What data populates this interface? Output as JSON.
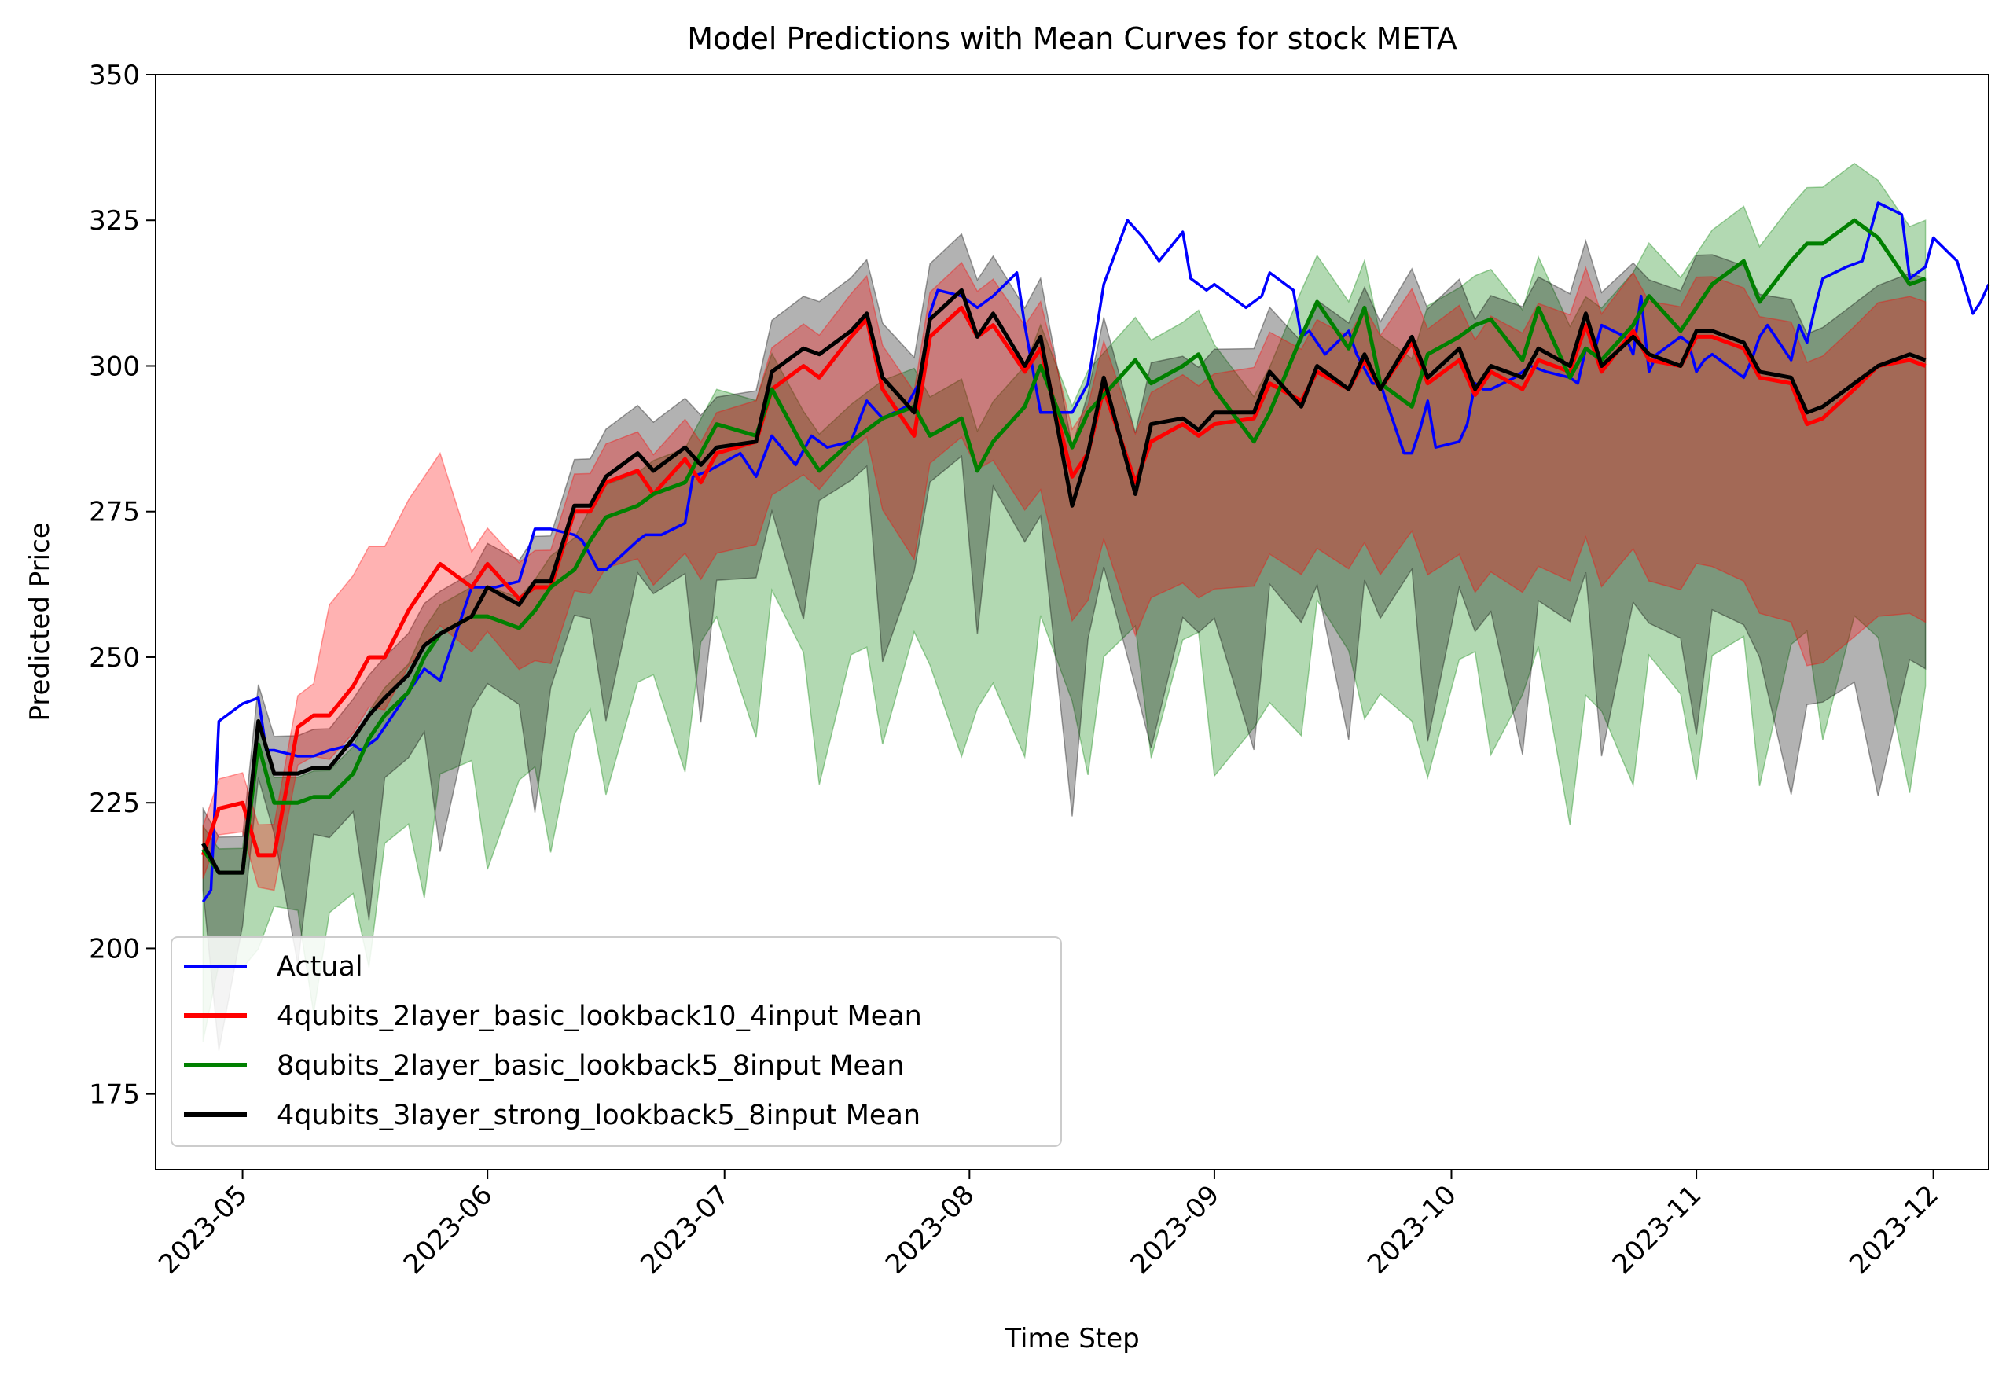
{
  "chart_data": {
    "type": "line",
    "title": "Model Predictions with Mean Curves for stock META",
    "xlabel": "Time Step",
    "ylabel": "Predicted Price",
    "ylim": [
      162,
      350
    ],
    "xlim": [
      "2023-04-20",
      "2023-12-08"
    ],
    "yticks": [
      175,
      200,
      225,
      250,
      275,
      300,
      325,
      350
    ],
    "xticks": [
      "2023-05-01",
      "2023-06-01",
      "2023-07-01",
      "2023-08-01",
      "2023-09-01",
      "2023-10-01",
      "2023-11-01",
      "2023-12-01"
    ],
    "xtick_labels": [
      "2023-05",
      "2023-06",
      "2023-07",
      "2023-08",
      "2023-09",
      "2023-10",
      "2023-11",
      "2023-12"
    ],
    "grid": false,
    "legend_position": "lower-left",
    "series": [
      {
        "name": "Actual",
        "color": "#0000ff",
        "kind": "line",
        "points": [
          [
            "2023-04-26",
            208
          ],
          [
            "2023-04-27",
            210
          ],
          [
            "2023-04-28",
            239
          ],
          [
            "2023-05-01",
            242
          ],
          [
            "2023-05-03",
            243
          ],
          [
            "2023-05-04",
            234
          ],
          [
            "2023-05-05",
            234
          ],
          [
            "2023-05-08",
            233
          ],
          [
            "2023-05-10",
            233
          ],
          [
            "2023-05-12",
            234
          ],
          [
            "2023-05-15",
            235
          ],
          [
            "2023-05-16",
            234
          ],
          [
            "2023-05-18",
            236
          ],
          [
            "2023-05-22",
            244
          ],
          [
            "2023-05-24",
            248
          ],
          [
            "2023-05-26",
            246
          ],
          [
            "2023-05-30",
            262
          ],
          [
            "2023-06-02",
            262
          ],
          [
            "2023-06-05",
            263
          ],
          [
            "2023-06-07",
            272
          ],
          [
            "2023-06-09",
            272
          ],
          [
            "2023-06-12",
            271
          ],
          [
            "2023-06-13",
            270
          ],
          [
            "2023-06-15",
            265
          ],
          [
            "2023-06-16",
            265
          ],
          [
            "2023-06-20",
            270
          ],
          [
            "2023-06-21",
            271
          ],
          [
            "2023-06-23",
            271
          ],
          [
            "2023-06-26",
            273
          ],
          [
            "2023-06-27",
            281
          ],
          [
            "2023-06-29",
            282
          ],
          [
            "2023-07-03",
            285
          ],
          [
            "2023-07-05",
            281
          ],
          [
            "2023-07-07",
            288
          ],
          [
            "2023-07-10",
            283
          ],
          [
            "2023-07-12",
            288
          ],
          [
            "2023-07-14",
            286
          ],
          [
            "2023-07-17",
            287
          ],
          [
            "2023-07-19",
            294
          ],
          [
            "2023-07-21",
            291
          ],
          [
            "2023-07-24",
            293
          ],
          [
            "2023-07-26",
            298
          ],
          [
            "2023-07-27",
            309
          ],
          [
            "2023-07-28",
            313
          ],
          [
            "2023-07-31",
            312
          ],
          [
            "2023-08-02",
            310
          ],
          [
            "2023-08-04",
            312
          ],
          [
            "2023-08-07",
            316
          ],
          [
            "2023-08-08",
            307
          ],
          [
            "2023-08-10",
            292
          ],
          [
            "2023-08-14",
            292
          ],
          [
            "2023-08-16",
            297
          ],
          [
            "2023-08-18",
            314
          ],
          [
            "2023-08-21",
            325
          ],
          [
            "2023-08-23",
            322
          ],
          [
            "2023-08-25",
            318
          ],
          [
            "2023-08-28",
            323
          ],
          [
            "2023-08-29",
            315
          ],
          [
            "2023-08-31",
            313
          ],
          [
            "2023-09-01",
            314
          ],
          [
            "2023-09-05",
            310
          ],
          [
            "2023-09-07",
            312
          ],
          [
            "2023-09-08",
            316
          ],
          [
            "2023-09-11",
            313
          ],
          [
            "2023-09-12",
            305
          ],
          [
            "2023-09-13",
            306
          ],
          [
            "2023-09-15",
            302
          ],
          [
            "2023-09-18",
            306
          ],
          [
            "2023-09-19",
            302
          ],
          [
            "2023-09-21",
            297
          ],
          [
            "2023-09-22",
            297
          ],
          [
            "2023-09-25",
            285
          ],
          [
            "2023-09-26",
            285
          ],
          [
            "2023-09-27",
            289
          ],
          [
            "2023-09-28",
            294
          ],
          [
            "2023-09-29",
            286
          ],
          [
            "2023-10-02",
            287
          ],
          [
            "2023-10-03",
            290
          ],
          [
            "2023-10-04",
            297
          ],
          [
            "2023-10-05",
            296
          ],
          [
            "2023-10-06",
            296
          ],
          [
            "2023-10-09",
            298
          ],
          [
            "2023-10-11",
            300
          ],
          [
            "2023-10-13",
            299
          ],
          [
            "2023-10-16",
            298
          ],
          [
            "2023-10-17",
            297
          ],
          [
            "2023-10-18",
            303
          ],
          [
            "2023-10-19",
            302
          ],
          [
            "2023-10-20",
            307
          ],
          [
            "2023-10-23",
            305
          ],
          [
            "2023-10-24",
            302
          ],
          [
            "2023-10-25",
            312
          ],
          [
            "2023-10-26",
            299
          ],
          [
            "2023-10-27",
            302
          ],
          [
            "2023-10-30",
            305
          ],
          [
            "2023-10-31",
            304
          ],
          [
            "2023-11-01",
            299
          ],
          [
            "2023-11-02",
            301
          ],
          [
            "2023-11-03",
            302
          ],
          [
            "2023-11-06",
            299
          ],
          [
            "2023-11-07",
            298
          ],
          [
            "2023-11-08",
            301
          ],
          [
            "2023-11-09",
            305
          ],
          [
            "2023-11-10",
            307
          ],
          [
            "2023-11-13",
            301
          ],
          [
            "2023-11-14",
            307
          ],
          [
            "2023-11-15",
            304
          ],
          [
            "2023-11-16",
            310
          ],
          [
            "2023-11-17",
            315
          ],
          [
            "2023-11-20",
            317
          ],
          [
            "2023-11-22",
            318
          ],
          [
            "2023-11-24",
            328
          ],
          [
            "2023-11-27",
            326
          ],
          [
            "2023-11-28",
            315
          ],
          [
            "2023-11-30",
            317
          ],
          [
            "2023-12-01",
            322
          ],
          [
            "2023-12-04",
            318
          ],
          [
            "2023-12-06",
            309
          ],
          [
            "2023-12-07",
            311
          ],
          [
            "2023-12-08",
            314
          ]
        ]
      },
      {
        "name": "4qubits_2layer_basic_lookback10_4input Mean",
        "color": "#ff0000",
        "kind": "line"
      },
      {
        "name": "8qubits_2layer_basic_lookback5_8input Mean",
        "color": "#008000",
        "kind": "line"
      },
      {
        "name": "4qubits_3layer_strong_lookback5_8input Mean",
        "color": "#000000",
        "kind": "line"
      }
    ],
    "mean_curves": {
      "dates": [
        "2023-04-26",
        "2023-04-28",
        "2023-05-01",
        "2023-05-03",
        "2023-05-05",
        "2023-05-08",
        "2023-05-10",
        "2023-05-12",
        "2023-05-15",
        "2023-05-17",
        "2023-05-19",
        "2023-05-22",
        "2023-05-24",
        "2023-05-26",
        "2023-05-30",
        "2023-06-01",
        "2023-06-05",
        "2023-06-07",
        "2023-06-09",
        "2023-06-12",
        "2023-06-14",
        "2023-06-16",
        "2023-06-20",
        "2023-06-22",
        "2023-06-26",
        "2023-06-28",
        "2023-06-30",
        "2023-07-05",
        "2023-07-07",
        "2023-07-11",
        "2023-07-13",
        "2023-07-17",
        "2023-07-19",
        "2023-07-21",
        "2023-07-25",
        "2023-07-27",
        "2023-07-31",
        "2023-08-02",
        "2023-08-04",
        "2023-08-08",
        "2023-08-10",
        "2023-08-14",
        "2023-08-16",
        "2023-08-18",
        "2023-08-22",
        "2023-08-24",
        "2023-08-28",
        "2023-08-30",
        "2023-09-01",
        "2023-09-06",
        "2023-09-08",
        "2023-09-12",
        "2023-09-14",
        "2023-09-18",
        "2023-09-20",
        "2023-09-22",
        "2023-09-26",
        "2023-09-28",
        "2023-10-02",
        "2023-10-04",
        "2023-10-06",
        "2023-10-10",
        "2023-10-12",
        "2023-10-16",
        "2023-10-18",
        "2023-10-20",
        "2023-10-24",
        "2023-10-26",
        "2023-10-30",
        "2023-11-01",
        "2023-11-03",
        "2023-11-07",
        "2023-11-09",
        "2023-11-13",
        "2023-11-15",
        "2023-11-17",
        "2023-11-21",
        "2023-11-24",
        "2023-11-28",
        "2023-11-30"
      ],
      "red": [
        216,
        224,
        225,
        216,
        216,
        238,
        240,
        240,
        245,
        250,
        250,
        258,
        262,
        266,
        262,
        266,
        260,
        262,
        262,
        275,
        275,
        280,
        282,
        278,
        284,
        280,
        285,
        287,
        296,
        300,
        298,
        305,
        308,
        296,
        288,
        305,
        310,
        305,
        307,
        299,
        303,
        281,
        285,
        296,
        280,
        287,
        290,
        288,
        290,
        291,
        297,
        294,
        299,
        296,
        301,
        296,
        304,
        297,
        301,
        295,
        299,
        296,
        301,
        299,
        307,
        299,
        306,
        301,
        300,
        305,
        305,
        303,
        298,
        297,
        290,
        291,
        296,
        300,
        301,
        300
      ],
      "green": [
        217,
        213,
        213,
        235,
        225,
        225,
        226,
        226,
        230,
        236,
        240,
        244,
        250,
        254,
        257,
        257,
        255,
        258,
        262,
        265,
        270,
        274,
        276,
        278,
        280,
        285,
        290,
        288,
        296,
        286,
        282,
        287,
        289,
        291,
        293,
        288,
        291,
        282,
        287,
        293,
        300,
        286,
        292,
        295,
        301,
        297,
        300,
        302,
        296,
        287,
        292,
        305,
        311,
        303,
        310,
        297,
        293,
        302,
        305,
        307,
        308,
        301,
        310,
        298,
        303,
        301,
        307,
        312,
        306,
        310,
        314,
        318,
        311,
        318,
        321,
        321,
        325,
        322,
        314,
        315
      ],
      "black": [
        218,
        213,
        213,
        239,
        230,
        230,
        231,
        231,
        236,
        240,
        243,
        247,
        252,
        254,
        257,
        262,
        259,
        263,
        263,
        276,
        276,
        281,
        285,
        282,
        286,
        283,
        286,
        287,
        299,
        303,
        302,
        306,
        309,
        298,
        292,
        308,
        313,
        305,
        309,
        300,
        305,
        276,
        285,
        298,
        278,
        290,
        291,
        289,
        292,
        292,
        299,
        293,
        300,
        296,
        302,
        296,
        305,
        298,
        303,
        296,
        300,
        298,
        303,
        300,
        309,
        300,
        305,
        302,
        300,
        306,
        306,
        304,
        299,
        298,
        292,
        293,
        297,
        300,
        302,
        301
      ]
    }
  },
  "legend": {
    "actual": "Actual",
    "red": "4qubits_2layer_basic_lookback10_4input Mean",
    "green": "8qubits_2layer_basic_lookback5_8input Mean",
    "black": "4qubits_3layer_strong_lookback5_8input Mean"
  }
}
